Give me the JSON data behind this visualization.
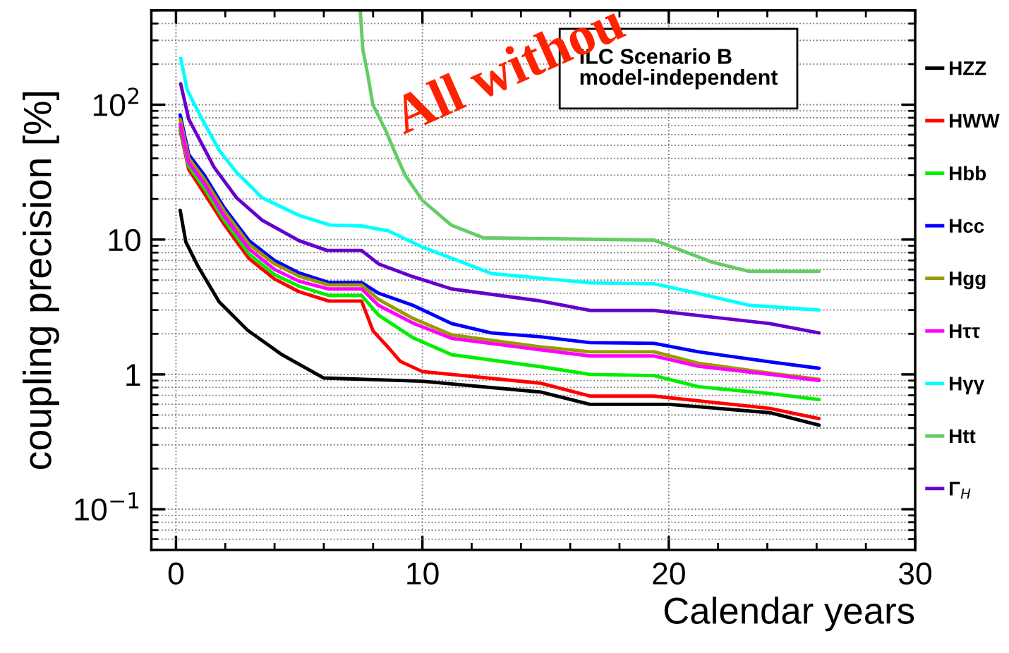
{
  "chart_data": {
    "type": "line",
    "xlabel": "Calendar years",
    "ylabel": "coupling precision [%]",
    "log": "y",
    "xlim": [
      -1,
      30
    ],
    "xticks": [
      0,
      10,
      20,
      30
    ],
    "ylim": [
      0.05,
      500
    ],
    "yticks": [
      {
        "value": 0.1,
        "label": "10$^{−1}$"
      },
      1,
      10,
      {
        "value": 100,
        "label": "10$^{2}$"
      }
    ],
    "grid": true,
    "legend": "right",
    "line_style": "solid",
    "marker": "none",
    "annotations": [
      "ILC Scenario B\nmodel-independent",
      "All withou"
    ],
    "series": [
      {
        "name": "HZZ",
        "color": "#000000",
        "x": [
          0.17,
          0.4,
          0.9,
          1.75,
          2.9,
          4.3,
          6.0,
          10.0,
          14.8,
          16.8,
          20.0,
          24.1,
          26.1
        ],
        "values": [
          16.5,
          9.6,
          6.3,
          3.45,
          2.13,
          1.4,
          0.94,
          0.89,
          0.74,
          0.6,
          0.6,
          0.52,
          0.42
        ]
      },
      {
        "name": "HWW",
        "color": "#ff0000",
        "x": [
          0.17,
          0.52,
          1.15,
          1.95,
          2.97,
          4.0,
          5.0,
          6.2,
          7.53,
          8.0,
          8.65,
          9.1,
          10.0,
          14.8,
          16.8,
          19.4,
          24.1,
          26.1
        ],
        "values": [
          65,
          33,
          22,
          13,
          7.2,
          5.1,
          4.1,
          3.5,
          3.5,
          2.1,
          1.56,
          1.25,
          1.05,
          0.86,
          0.69,
          0.69,
          0.56,
          0.47
        ]
      },
      {
        "name": "Hbb",
        "color": "#00ee00",
        "x": [
          0.17,
          0.52,
          1.15,
          1.95,
          2.97,
          4.0,
          5.0,
          6.2,
          7.53,
          8.22,
          9.62,
          11.19,
          14.8,
          16.8,
          19.4,
          21.2,
          24.1,
          26.1
        ],
        "values": [
          68,
          35,
          24,
          14,
          7.8,
          5.5,
          4.5,
          3.85,
          3.85,
          2.75,
          1.87,
          1.4,
          1.14,
          1.0,
          0.98,
          0.81,
          0.72,
          0.65
        ]
      },
      {
        "name": "Hcc",
        "color": "#0000ff",
        "x": [
          0.17,
          0.52,
          1.15,
          1.95,
          2.97,
          4.0,
          5.0,
          6.2,
          7.53,
          8.22,
          9.62,
          11.19,
          12.8,
          14.8,
          16.8,
          19.4,
          21.2,
          24.1,
          26.1
        ],
        "values": [
          84,
          42.6,
          30,
          17.3,
          9.8,
          7.0,
          5.65,
          4.8,
          4.8,
          4.0,
          3.25,
          2.38,
          2.03,
          1.9,
          1.72,
          1.7,
          1.47,
          1.24,
          1.11
        ]
      },
      {
        "name": "Hgg",
        "color": "#999900",
        "x": [
          0.17,
          0.52,
          1.15,
          1.95,
          2.97,
          4.0,
          5.0,
          6.2,
          7.53,
          8.22,
          9.62,
          11.19,
          14.8,
          16.8,
          19.4,
          21.2,
          24.1,
          26.1
        ],
        "values": [
          78,
          40,
          28,
          16.3,
          9.2,
          6.6,
          5.35,
          4.6,
          4.6,
          3.6,
          2.6,
          1.96,
          1.6,
          1.47,
          1.47,
          1.21,
          1.02,
          0.92
        ]
      },
      {
        "name": "Hττ",
        "color": "#ff00ff",
        "x": [
          0.17,
          0.52,
          1.15,
          1.95,
          2.97,
          4.0,
          5.0,
          6.2,
          7.53,
          8.22,
          9.62,
          11.19,
          14.8,
          16.8,
          19.4,
          21.2,
          24.1,
          26.1
        ],
        "values": [
          72,
          37,
          26,
          15,
          8.5,
          6.0,
          4.9,
          4.3,
          4.3,
          3.25,
          2.4,
          1.85,
          1.52,
          1.37,
          1.37,
          1.15,
          1.0,
          0.9
        ]
      },
      {
        "name": "Hγγ",
        "color": "#00ffff",
        "x": [
          0.19,
          0.46,
          1.03,
          1.75,
          2.46,
          3.5,
          5.0,
          6.25,
          7.54,
          8.62,
          10.0,
          12.8,
          16.8,
          19.4,
          21.2,
          23.3,
          26.1
        ],
        "values": [
          221,
          128,
          80,
          46,
          31.5,
          20.4,
          15.1,
          12.8,
          12.6,
          11.6,
          8.8,
          5.6,
          4.77,
          4.7,
          3.98,
          3.25,
          3.0
        ]
      },
      {
        "name": "Htt",
        "color": "#66cc66",
        "x": [
          7.48,
          7.58,
          7.78,
          7.99,
          8.5,
          8.85,
          9.3,
          10.0,
          11.17,
          12.48,
          19.4,
          20.15,
          21.76,
          23.27,
          26.1
        ],
        "values": [
          500,
          258,
          168,
          100,
          65,
          46,
          30,
          19.5,
          12.8,
          10.3,
          9.9,
          8.8,
          6.8,
          5.8,
          5.8
        ]
      },
      {
        "name": "Γ$_{H}$",
        "color": "#6600cc",
        "x": [
          0.19,
          0.52,
          1.03,
          1.55,
          2.46,
          3.5,
          5.0,
          6.13,
          7.53,
          8.22,
          9.62,
          11.19,
          14.8,
          16.8,
          19.4,
          24.1,
          26.1
        ],
        "values": [
          143,
          78,
          52,
          34.3,
          20.4,
          13.9,
          9.8,
          8.3,
          8.3,
          6.6,
          5.3,
          4.3,
          3.5,
          2.98,
          2.98,
          2.38,
          2.03
        ]
      }
    ]
  }
}
